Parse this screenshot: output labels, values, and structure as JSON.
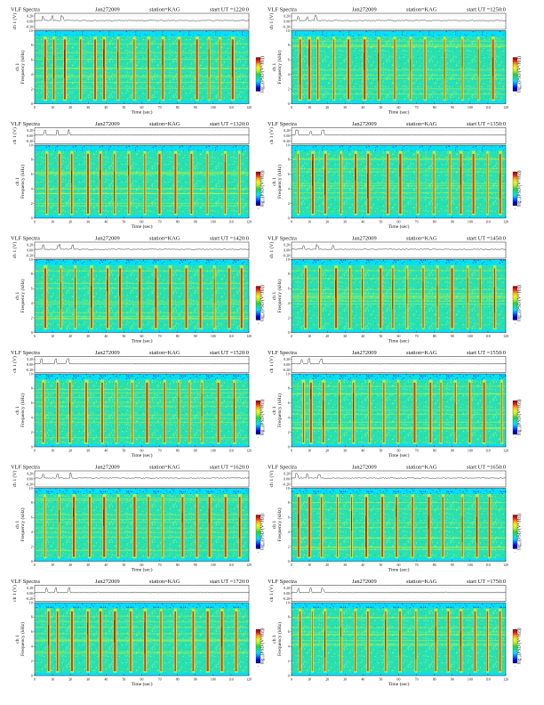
{
  "chart_data": {
    "type": "heatmap",
    "colormap": [
      "#000070",
      "#0000e6",
      "#0078ff",
      "#00e0ff",
      "#00e6a0",
      "#2ad62a",
      "#b4f028",
      "#f5f514",
      "#ffaa00",
      "#e61e1e",
      "#8c0000"
    ],
    "background_color": "#f0e6f0",
    "dominant_level_color": "#29e0b6",
    "panels": [
      {
        "header": {
          "title": "VLF Spectra",
          "date": "Jan272009",
          "station": "station=KAG",
          "start": "start  UT =1220:0"
        },
        "bursts": [
          5,
          10,
          16,
          25,
          33,
          38,
          46,
          55,
          63,
          71,
          80,
          90,
          97,
          103,
          110
        ]
      },
      {
        "header": {
          "title": "VLF Spectra",
          "date": "Jan272009",
          "station": "station=KAG",
          "start": "start  UT =1250:0"
        },
        "bursts": [
          4,
          9,
          14,
          23,
          31,
          40,
          48,
          57,
          66,
          74,
          85,
          95,
          104,
          112
        ]
      },
      {
        "header": {
          "title": "VLF Spectra",
          "date": "Jan272009",
          "station": "station=KAG",
          "start": "start  UT =1320:0"
        },
        "bursts": [
          6,
          13,
          20,
          29,
          36,
          44,
          52,
          61,
          69,
          78,
          87,
          96,
          106,
          114
        ]
      },
      {
        "header": {
          "title": "VLF Spectra",
          "date": "Jan272009",
          "station": "station=KAG",
          "start": "start  UT =1350:0"
        },
        "bursts": [
          3,
          11,
          18,
          27,
          35,
          42,
          53,
          60,
          70,
          79,
          88,
          94,
          101,
          109,
          116
        ]
      },
      {
        "header": {
          "title": "VLF Spectra",
          "date": "Jan272009",
          "station": "station=KAG",
          "start": "start  UT =1420:0"
        },
        "bursts": [
          5,
          14,
          22,
          31,
          40,
          47,
          58,
          67,
          75,
          84,
          92,
          100,
          108,
          115
        ]
      },
      {
        "header": {
          "title": "VLF Spectra",
          "date": "Jan272009",
          "station": "station=KAG",
          "start": "start  UT =1450:0"
        },
        "bursts": [
          7,
          15,
          24,
          32,
          39,
          49,
          56,
          64,
          73,
          81,
          89,
          98,
          105,
          113
        ]
      },
      {
        "header": {
          "title": "VLF Spectra",
          "date": "Jan272009",
          "station": "station=KAG",
          "start": "start  UT =1520:0"
        },
        "bursts": [
          4,
          12,
          19,
          28,
          37,
          45,
          54,
          62,
          72,
          80,
          86,
          93,
          102,
          111
        ]
      },
      {
        "header": {
          "title": "VLF Spectra",
          "date": "Jan272009",
          "station": "station=KAG",
          "start": "start  UT =1550:0"
        },
        "bursts": [
          6,
          10,
          17,
          26,
          34,
          43,
          51,
          59,
          68,
          77,
          83,
          91,
          99,
          107,
          117
        ]
      },
      {
        "header": {
          "title": "VLF Spectra",
          "date": "Jan272009",
          "station": "station=KAG",
          "start": "start  UT =1620:0"
        },
        "bursts": [
          5,
          13,
          21,
          30,
          38,
          46,
          55,
          63,
          71,
          82,
          90,
          97,
          106,
          114
        ]
      },
      {
        "header": {
          "title": "VLF Spectra",
          "date": "Jan272009",
          "station": "station=KAG",
          "start": "start  UT =1650:0"
        },
        "bursts": [
          3,
          9,
          16,
          25,
          33,
          41,
          50,
          58,
          67,
          76,
          84,
          95,
          103,
          110
        ]
      },
      {
        "header": {
          "title": "VLF Spectra",
          "date": "Jan272009",
          "station": "station=KAG",
          "start": "start  UT =1720:0"
        },
        "bursts": [
          7,
          12,
          20,
          29,
          36,
          44,
          53,
          61,
          70,
          78,
          88,
          96,
          104,
          112
        ]
      },
      {
        "header": {
          "title": "VLF Spectra",
          "date": "Jan272009",
          "station": "station=KAG",
          "start": "start  UT =1750:0"
        },
        "bursts": [
          4,
          11,
          18,
          27,
          35,
          42,
          52,
          60,
          69,
          80,
          87,
          94,
          102,
          109,
          116
        ]
      }
    ],
    "axes": {
      "trace_ylabel": "ch 1 (V)",
      "trace_ticks": [
        "0.20",
        "0.00",
        "-0.20"
      ],
      "trace_ylim": [
        -0.2,
        0.2
      ],
      "spectro_ylabel_line1": "ch 1",
      "spectro_ylabel_line2": "Frequency  (kHz)",
      "spectro_yticks": [
        "0",
        "2",
        "4",
        "6",
        "8",
        "10"
      ],
      "spectro_ylim": [
        0,
        10
      ],
      "xlabel": "Time  (sec)",
      "xticks": [
        "0",
        "10",
        "20",
        "30",
        "40",
        "50",
        "60",
        "70",
        "80",
        "90",
        "100",
        "110",
        "120"
      ],
      "xlim": [
        0,
        120
      ],
      "colorbar_label": "log₁₀(PSD/(V²/Hz))",
      "colorbar_tick": "-"
    }
  }
}
